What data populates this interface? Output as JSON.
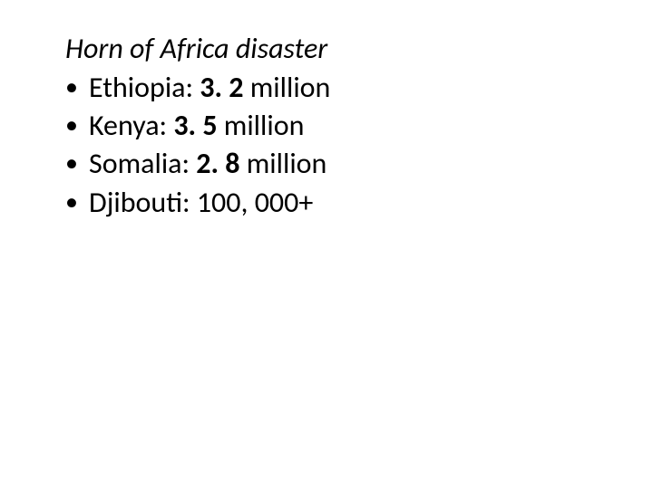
{
  "slide": {
    "background_color": "#ffffff",
    "text_color": "#000000",
    "title_fontsize": 32,
    "body_fontsize": 32,
    "title": "Horn of Africa disaster",
    "title_style": "italic",
    "bullets": [
      {
        "label": "Ethiopia",
        "value": "3. 2",
        "unit": "million",
        "value_bold": true
      },
      {
        "label": "Kenya",
        "value": "3. 5",
        "unit": "million",
        "value_bold": true
      },
      {
        "label": "Somalia",
        "value": "2. 8",
        "unit": "million",
        "value_bold": true
      },
      {
        "label": "Djibouti",
        "value": "100, 000+",
        "unit": "",
        "value_bold": false
      }
    ]
  }
}
